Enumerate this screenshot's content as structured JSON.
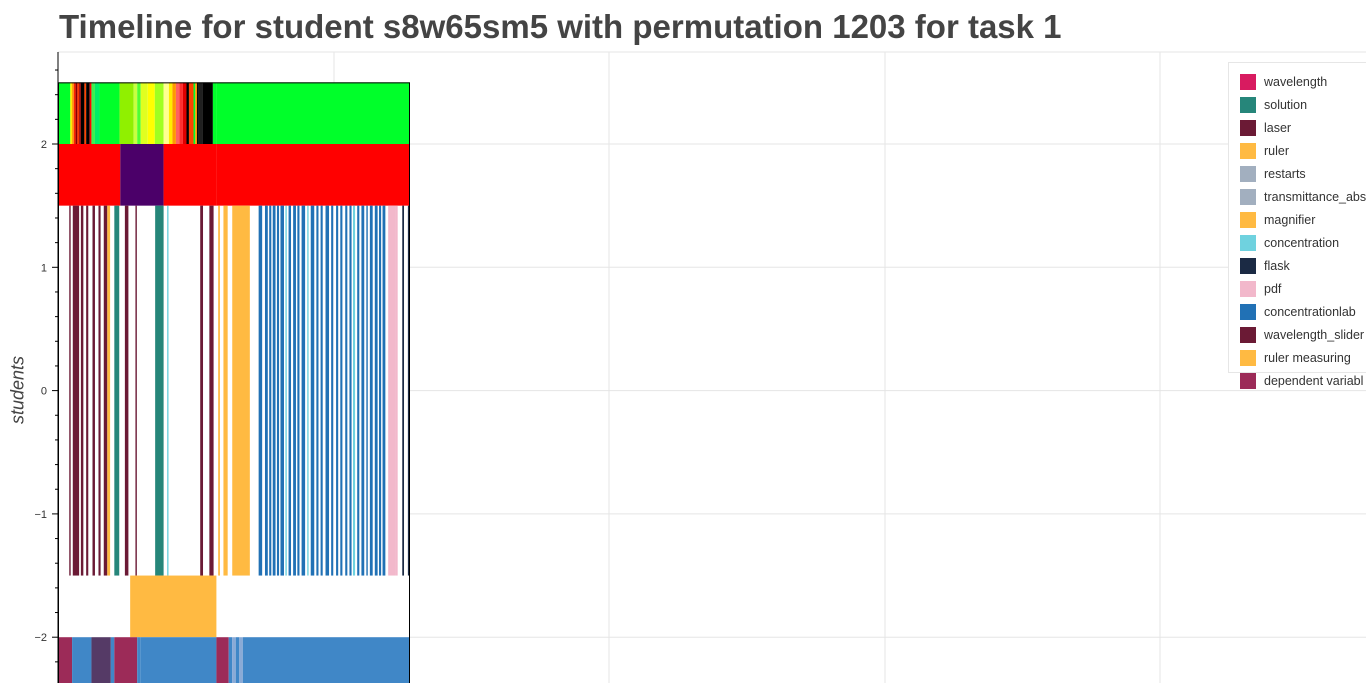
{
  "chart_data": {
    "type": "timeline",
    "title": "Timeline for student s8w65sm5 with permutation 1203 for task 1",
    "xlabel": "",
    "ylabel": "students",
    "ylim": [
      -2.4,
      2.8
    ],
    "yticks": [
      2,
      1,
      0,
      -1,
      -2
    ],
    "ytick_labels": [
      "2",
      "1",
      "0",
      "−1",
      "−2"
    ],
    "xlim": [
      0,
      1
    ],
    "grid": true,
    "legend_position": "top-right",
    "legend": [
      {
        "label": "wavelength",
        "color": "#d81b60"
      },
      {
        "label": "solution",
        "color": "#26867a"
      },
      {
        "label": "laser",
        "color": "#6b1a35"
      },
      {
        "label": "ruler",
        "color": "#ffba42"
      },
      {
        "label": "restarts",
        "color": "#a2afbf"
      },
      {
        "label": "transmittance_abs",
        "color": "#a2afbf"
      },
      {
        "label": "magnifier",
        "color": "#ffba42"
      },
      {
        "label": "concentration",
        "color": "#6fd2df"
      },
      {
        "label": "flask",
        "color": "#1b2a44"
      },
      {
        "label": "pdf",
        "color": "#f2b8cb"
      },
      {
        "label": "concentrationlab",
        "color": "#2171b5"
      },
      {
        "label": "wavelength_slider",
        "color": "#6b1a35"
      },
      {
        "label": "ruler measuring",
        "color": "#ffba42"
      },
      {
        "label": "dependent variabl",
        "color": "#9c2b58"
      }
    ],
    "rows": [
      {
        "y_range": [
          2.0,
          2.5
        ],
        "segments": [
          {
            "start": 0.0,
            "end": 0.035,
            "color": "#00ff2a"
          },
          {
            "start": 0.035,
            "end": 0.04,
            "color": "#ffee00"
          },
          {
            "start": 0.04,
            "end": 0.045,
            "color": "#ff9900"
          },
          {
            "start": 0.045,
            "end": 0.05,
            "color": "#ff2200"
          },
          {
            "start": 0.05,
            "end": 0.055,
            "color": "#880000"
          },
          {
            "start": 0.055,
            "end": 0.06,
            "color": "#ff3300"
          },
          {
            "start": 0.06,
            "end": 0.065,
            "color": "#a00000"
          },
          {
            "start": 0.065,
            "end": 0.075,
            "color": "#000000"
          },
          {
            "start": 0.075,
            "end": 0.08,
            "color": "#ff4400"
          },
          {
            "start": 0.08,
            "end": 0.09,
            "color": "#000000"
          },
          {
            "start": 0.09,
            "end": 0.095,
            "color": "#ff0000"
          },
          {
            "start": 0.095,
            "end": 0.105,
            "color": "#3cf050"
          },
          {
            "start": 0.105,
            "end": 0.118,
            "color": "#00ee66"
          },
          {
            "start": 0.118,
            "end": 0.175,
            "color": "#00ff2a"
          },
          {
            "start": 0.175,
            "end": 0.215,
            "color": "#90f000"
          },
          {
            "start": 0.215,
            "end": 0.225,
            "color": "#c8ff40"
          },
          {
            "start": 0.225,
            "end": 0.235,
            "color": "#50ff30"
          },
          {
            "start": 0.235,
            "end": 0.255,
            "color": "#e0ff20"
          },
          {
            "start": 0.255,
            "end": 0.275,
            "color": "#ffff00"
          },
          {
            "start": 0.275,
            "end": 0.3,
            "color": "#a0ff20"
          },
          {
            "start": 0.3,
            "end": 0.315,
            "color": "#ffff90"
          },
          {
            "start": 0.315,
            "end": 0.325,
            "color": "#ffee00"
          },
          {
            "start": 0.325,
            "end": 0.335,
            "color": "#ff9900"
          },
          {
            "start": 0.335,
            "end": 0.345,
            "color": "#ff6060"
          },
          {
            "start": 0.345,
            "end": 0.355,
            "color": "#ff3030"
          },
          {
            "start": 0.355,
            "end": 0.365,
            "color": "#e00000"
          },
          {
            "start": 0.365,
            "end": 0.372,
            "color": "#000000"
          },
          {
            "start": 0.372,
            "end": 0.385,
            "color": "#ff4400"
          },
          {
            "start": 0.385,
            "end": 0.39,
            "color": "#00ff2a"
          },
          {
            "start": 0.39,
            "end": 0.395,
            "color": "#ff9900"
          },
          {
            "start": 0.395,
            "end": 0.4,
            "color": "#000000"
          },
          {
            "start": 0.4,
            "end": 0.41,
            "color": "#202020"
          },
          {
            "start": 0.41,
            "end": 0.44,
            "color": "#000000"
          },
          {
            "start": 0.44,
            "end": 0.45,
            "color": "#00ff2a"
          },
          {
            "start": 0.45,
            "end": 1.0,
            "color": "#00ff2a"
          }
        ]
      },
      {
        "y_range": [
          1.5,
          2.0
        ],
        "segments": [
          {
            "start": 0.0,
            "end": 0.177,
            "color": "#ff0000"
          },
          {
            "start": 0.177,
            "end": 0.3,
            "color": "#4b0069"
          },
          {
            "start": 0.3,
            "end": 0.45,
            "color": "#ff0000"
          },
          {
            "start": 0.45,
            "end": 1.0,
            "color": "#ff0000"
          }
        ]
      },
      {
        "y_range": [
          -1.5,
          1.5
        ],
        "segments": [
          {
            "start": 0.032,
            "end": 0.036,
            "color": "#6b1a35"
          },
          {
            "start": 0.042,
            "end": 0.06,
            "color": "#6b1a35"
          },
          {
            "start": 0.065,
            "end": 0.072,
            "color": "#6b1a35"
          },
          {
            "start": 0.08,
            "end": 0.086,
            "color": "#6b1a35"
          },
          {
            "start": 0.098,
            "end": 0.105,
            "color": "#6b1a35"
          },
          {
            "start": 0.115,
            "end": 0.121,
            "color": "#6b1a35"
          },
          {
            "start": 0.13,
            "end": 0.14,
            "color": "#6b1a35"
          },
          {
            "start": 0.14,
            "end": 0.148,
            "color": "#ffba42"
          },
          {
            "start": 0.16,
            "end": 0.174,
            "color": "#26867a"
          },
          {
            "start": 0.19,
            "end": 0.2,
            "color": "#6b1a35"
          },
          {
            "start": 0.22,
            "end": 0.224,
            "color": "#6b1a35"
          },
          {
            "start": 0.276,
            "end": 0.3,
            "color": "#26867a"
          },
          {
            "start": 0.31,
            "end": 0.314,
            "color": "#6fd2df"
          },
          {
            "start": 0.404,
            "end": 0.412,
            "color": "#6b1a35"
          },
          {
            "start": 0.43,
            "end": 0.442,
            "color": "#6b1a35"
          },
          {
            "start": 0.455,
            "end": 0.46,
            "color": "#ffba42"
          },
          {
            "start": 0.47,
            "end": 0.482,
            "color": "#ffba42"
          },
          {
            "start": 0.495,
            "end": 0.545,
            "color": "#ffba42"
          },
          {
            "start": 0.57,
            "end": 0.58,
            "color": "#2171b5"
          },
          {
            "start": 0.588,
            "end": 0.596,
            "color": "#2171b5"
          },
          {
            "start": 0.6,
            "end": 0.606,
            "color": "#2171b5"
          },
          {
            "start": 0.61,
            "end": 0.618,
            "color": "#2171b5"
          },
          {
            "start": 0.622,
            "end": 0.628,
            "color": "#2171b5"
          },
          {
            "start": 0.632,
            "end": 0.642,
            "color": "#2171b5"
          },
          {
            "start": 0.646,
            "end": 0.65,
            "color": "#6fd2df"
          },
          {
            "start": 0.655,
            "end": 0.662,
            "color": "#2171b5"
          },
          {
            "start": 0.668,
            "end": 0.676,
            "color": "#2171b5"
          },
          {
            "start": 0.68,
            "end": 0.686,
            "color": "#2171b5"
          },
          {
            "start": 0.692,
            "end": 0.702,
            "color": "#2171b5"
          },
          {
            "start": 0.708,
            "end": 0.712,
            "color": "#6fd2df"
          },
          {
            "start": 0.718,
            "end": 0.728,
            "color": "#2171b5"
          },
          {
            "start": 0.734,
            "end": 0.74,
            "color": "#2171b5"
          },
          {
            "start": 0.746,
            "end": 0.752,
            "color": "#2171b5"
          },
          {
            "start": 0.76,
            "end": 0.77,
            "color": "#2171b5"
          },
          {
            "start": 0.776,
            "end": 0.782,
            "color": "#2171b5"
          },
          {
            "start": 0.79,
            "end": 0.796,
            "color": "#2171b5"
          },
          {
            "start": 0.802,
            "end": 0.808,
            "color": "#2171b5"
          },
          {
            "start": 0.816,
            "end": 0.822,
            "color": "#2171b5"
          },
          {
            "start": 0.828,
            "end": 0.834,
            "color": "#2171b5"
          },
          {
            "start": 0.838,
            "end": 0.844,
            "color": "#6fd2df"
          },
          {
            "start": 0.85,
            "end": 0.856,
            "color": "#2171b5"
          },
          {
            "start": 0.862,
            "end": 0.87,
            "color": "#2171b5"
          },
          {
            "start": 0.876,
            "end": 0.88,
            "color": "#2171b5"
          },
          {
            "start": 0.886,
            "end": 0.894,
            "color": "#2171b5"
          },
          {
            "start": 0.9,
            "end": 0.908,
            "color": "#2171b5"
          },
          {
            "start": 0.912,
            "end": 0.918,
            "color": "#2171b5"
          },
          {
            "start": 0.922,
            "end": 0.93,
            "color": "#2171b5"
          },
          {
            "start": 0.938,
            "end": 0.96,
            "color": "#f2b8cb"
          },
          {
            "start": 0.96,
            "end": 0.965,
            "color": "#f2b8cb"
          },
          {
            "start": 0.978,
            "end": 0.983,
            "color": "#1b2a44"
          },
          {
            "start": 0.994,
            "end": 1.0,
            "color": "#1b2a44"
          }
        ]
      },
      {
        "y_range": [
          -2.0,
          -1.5
        ],
        "segments": [
          {
            "start": 0.205,
            "end": 0.45,
            "color": "#ffba42"
          }
        ]
      },
      {
        "y_range": [
          -2.4,
          -2.0
        ],
        "segments": [
          {
            "start": 0.0,
            "end": 0.04,
            "color": "#9c2b58"
          },
          {
            "start": 0.04,
            "end": 0.095,
            "color": "#4087c7"
          },
          {
            "start": 0.095,
            "end": 0.15,
            "color": "#553a66"
          },
          {
            "start": 0.15,
            "end": 0.16,
            "color": "#4087c7"
          },
          {
            "start": 0.16,
            "end": 0.225,
            "color": "#9c2b58"
          },
          {
            "start": 0.225,
            "end": 0.235,
            "color": "#4087c7"
          },
          {
            "start": 0.235,
            "end": 0.45,
            "color": "#4087c7"
          },
          {
            "start": 0.45,
            "end": 0.485,
            "color": "#9c2b58"
          },
          {
            "start": 0.485,
            "end": 0.495,
            "color": "#4087c7"
          },
          {
            "start": 0.495,
            "end": 0.505,
            "color": "#8aaad6"
          },
          {
            "start": 0.505,
            "end": 0.515,
            "color": "#4087c7"
          },
          {
            "start": 0.515,
            "end": 0.525,
            "color": "#8aaad6"
          },
          {
            "start": 0.525,
            "end": 1.0,
            "color": "#4087c7"
          }
        ]
      }
    ]
  }
}
